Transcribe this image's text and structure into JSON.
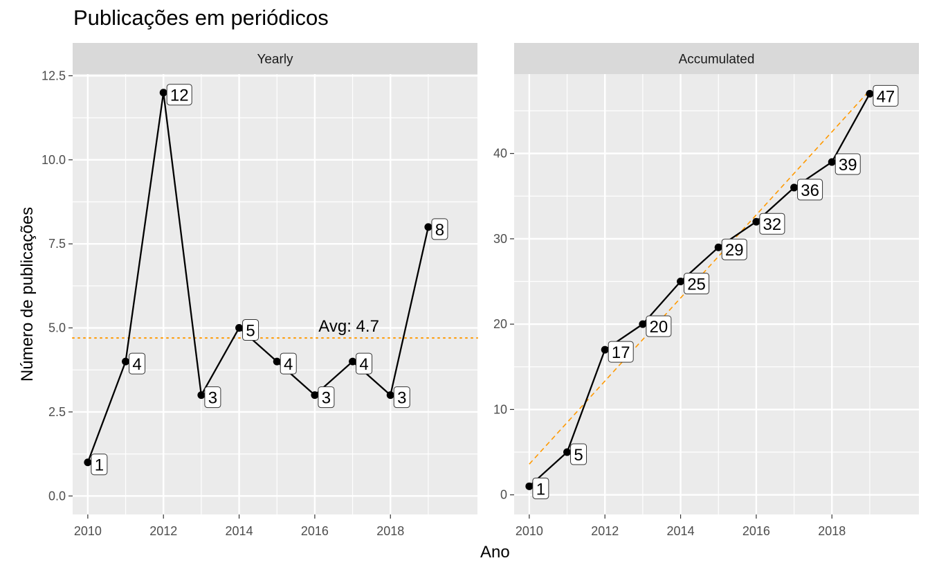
{
  "chart_data": {
    "title": "Publicações em periódicos",
    "xlabel": "Ano",
    "ylabel": "Número de publicações",
    "colors": {
      "panel_bg": "#ebebeb",
      "strip_bg": "#d9d9d9",
      "grid": "#ffffff",
      "line": "#000000",
      "reference": "#ff9900",
      "axis_text": "#4d4d4d"
    },
    "panels": [
      {
        "type": "line",
        "strip": "Yearly",
        "x": [
          2010,
          2011,
          2012,
          2013,
          2014,
          2015,
          2016,
          2017,
          2018,
          2019
        ],
        "values": [
          1,
          4,
          12,
          3,
          5,
          4,
          3,
          4,
          3,
          8
        ],
        "labels": [
          "1",
          "4",
          "12",
          "3",
          "5",
          "4",
          "3",
          "4",
          "3",
          "8"
        ],
        "xlim": [
          2009.6,
          2020.3
        ],
        "ylim": [
          -0.55,
          12.55
        ],
        "xticks": [
          2010,
          2012,
          2014,
          2016,
          2018
        ],
        "xtick_labels": [
          "2010",
          "2012",
          "2014",
          "2016",
          "2018"
        ],
        "yticks": [
          0,
          2.5,
          5,
          7.5,
          10,
          12.5
        ],
        "ytick_labels": [
          "0.0",
          "2.5",
          "5.0",
          "7.5",
          "10.0",
          "12.5"
        ],
        "reference_line": {
          "style": "dotted",
          "y": 4.7
        },
        "annotation": {
          "text": "Avg: 4.7",
          "x": 2016.9,
          "y": 4.7
        }
      },
      {
        "type": "line",
        "strip": "Accumulated",
        "x": [
          2010,
          2011,
          2012,
          2013,
          2014,
          2015,
          2016,
          2017,
          2018,
          2019
        ],
        "values": [
          1,
          5,
          17,
          20,
          25,
          29,
          32,
          36,
          39,
          47
        ],
        "labels": [
          "1",
          "5",
          "17",
          "20",
          "25",
          "29",
          "32",
          "36",
          "39",
          "47"
        ],
        "xlim": [
          2009.6,
          2020.3
        ],
        "ylim": [
          -2.3,
          49.3
        ],
        "xticks": [
          2010,
          2012,
          2014,
          2016,
          2018
        ],
        "xtick_labels": [
          "2010",
          "2012",
          "2014",
          "2016",
          "2018"
        ],
        "yticks": [
          0,
          10,
          20,
          30,
          40
        ],
        "ytick_labels": [
          "0",
          "10",
          "20",
          "30",
          "40"
        ],
        "reference_line": {
          "style": "dashed",
          "x": [
            2010,
            2019
          ],
          "y": [
            3.6,
            47.4
          ]
        }
      }
    ]
  }
}
